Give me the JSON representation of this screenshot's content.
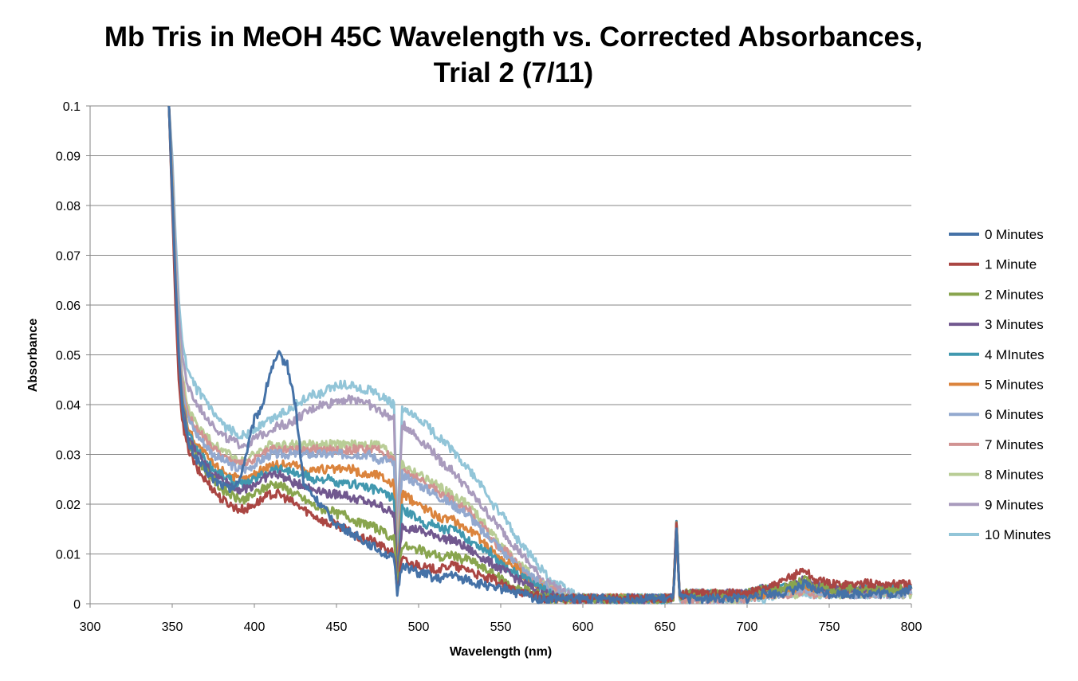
{
  "chart_data": {
    "type": "line",
    "title": [
      "Mb Tris in MeOH 45C Wavelength vs. Corrected Absorbances,",
      "Trial 2 (7/11)"
    ],
    "xlabel": "Wavelength (nm)",
    "ylabel": "Absorbance",
    "xlim": [
      300,
      800
    ],
    "ylim": [
      0,
      0.1
    ],
    "x_ticks": [
      "300",
      "350",
      "400",
      "450",
      "500",
      "550",
      "600",
      "650",
      "700",
      "750",
      "800"
    ],
    "y_ticks": [
      "0",
      "0.01",
      "0.02",
      "0.03",
      "0.04",
      "0.05",
      "0.06",
      "0.07",
      "0.08",
      "0.09",
      "0.1"
    ],
    "grid": "horizontal",
    "legend_position": "right",
    "colors": [
      "#4572A7",
      "#AA4643",
      "#89A54E",
      "#71588F",
      "#4198AF",
      "#DB843D",
      "#93A9CF",
      "#D19392",
      "#B9CD96",
      "#A99BBD",
      "#92C5D8"
    ],
    "x": [
      348,
      350,
      352,
      354,
      356,
      358,
      360,
      365,
      370,
      375,
      380,
      385,
      390,
      395,
      400,
      405,
      410,
      415,
      420,
      425,
      430,
      435,
      440,
      445,
      450,
      455,
      460,
      465,
      470,
      475,
      480,
      485,
      487,
      490,
      495,
      500,
      505,
      510,
      515,
      520,
      525,
      530,
      535,
      540,
      545,
      550,
      555,
      560,
      565,
      570,
      575,
      580,
      585,
      590,
      595,
      600,
      610,
      620,
      630,
      640,
      650,
      655,
      657,
      659,
      661,
      665,
      670,
      680,
      690,
      700,
      710,
      720,
      730,
      735,
      740,
      750,
      760,
      770,
      780,
      790,
      800
    ],
    "series": [
      {
        "name": "0 Minutes",
        "values": [
          0.1,
          0.082,
          0.065,
          0.05,
          0.04,
          0.035,
          0.032,
          0.029,
          0.027,
          0.025,
          0.024,
          0.023,
          0.024,
          0.03,
          0.037,
          0.04,
          0.047,
          0.05,
          0.048,
          0.04,
          0.024,
          0.022,
          0.02,
          0.018,
          0.016,
          0.015,
          0.014,
          0.013,
          0.012,
          0.011,
          0.01,
          0.009,
          0.002,
          0.008,
          0.007,
          0.006,
          0.006,
          0.005,
          0.005,
          0.006,
          0.005,
          0.005,
          0.004,
          0.004,
          0.003,
          0.003,
          0.003,
          0.002,
          0.002,
          0.001,
          0.001,
          0.001,
          0.001,
          0.001,
          0.001,
          0.001,
          0.001,
          0.001,
          0.001,
          0.001,
          0.001,
          0.001,
          0.015,
          0.001,
          0.001,
          0.001,
          0.001,
          0.001,
          0.001,
          0.001,
          0.002,
          0.002,
          0.003,
          0.004,
          0.003,
          0.002,
          0.002,
          0.002,
          0.002,
          0.002,
          0.003
        ]
      },
      {
        "name": "1 Minute",
        "values": [
          0.1,
          0.08,
          0.06,
          0.045,
          0.037,
          0.033,
          0.031,
          0.027,
          0.025,
          0.023,
          0.021,
          0.02,
          0.019,
          0.019,
          0.02,
          0.021,
          0.022,
          0.022,
          0.021,
          0.02,
          0.019,
          0.018,
          0.017,
          0.016,
          0.016,
          0.015,
          0.014,
          0.013,
          0.013,
          0.012,
          0.011,
          0.01,
          0.003,
          0.009,
          0.008,
          0.008,
          0.007,
          0.007,
          0.007,
          0.008,
          0.007,
          0.007,
          0.006,
          0.005,
          0.005,
          0.004,
          0.003,
          0.003,
          0.002,
          0.002,
          0.001,
          0.001,
          0.001,
          0.001,
          0.001,
          0.001,
          0.001,
          0.001,
          0.001,
          0.001,
          0.001,
          0.001,
          0.016,
          0.001,
          0.002,
          0.002,
          0.002,
          0.002,
          0.002,
          0.002,
          0.003,
          0.004,
          0.006,
          0.007,
          0.005,
          0.004,
          0.004,
          0.004,
          0.004,
          0.004,
          0.004
        ]
      },
      {
        "name": "2 Minutes",
        "values": [
          0.1,
          0.081,
          0.062,
          0.047,
          0.039,
          0.035,
          0.032,
          0.029,
          0.027,
          0.025,
          0.023,
          0.022,
          0.021,
          0.021,
          0.022,
          0.023,
          0.024,
          0.024,
          0.023,
          0.022,
          0.021,
          0.02,
          0.019,
          0.019,
          0.018,
          0.018,
          0.017,
          0.016,
          0.016,
          0.015,
          0.014,
          0.013,
          0.004,
          0.012,
          0.011,
          0.011,
          0.01,
          0.01,
          0.009,
          0.01,
          0.009,
          0.009,
          0.008,
          0.007,
          0.006,
          0.005,
          0.004,
          0.003,
          0.003,
          0.002,
          0.002,
          0.001,
          0.001,
          0.001,
          0.001,
          0.001,
          0.001,
          0.001,
          0.001,
          0.001,
          0.001,
          0.001,
          0.016,
          0.001,
          0.002,
          0.002,
          0.002,
          0.002,
          0.002,
          0.002,
          0.003,
          0.003,
          0.004,
          0.005,
          0.004,
          0.003,
          0.003,
          0.003,
          0.003,
          0.003,
          0.003
        ]
      },
      {
        "name": "3 Minutes",
        "values": [
          0.1,
          0.082,
          0.063,
          0.048,
          0.04,
          0.036,
          0.033,
          0.03,
          0.028,
          0.026,
          0.025,
          0.024,
          0.023,
          0.023,
          0.024,
          0.025,
          0.026,
          0.026,
          0.025,
          0.024,
          0.024,
          0.023,
          0.023,
          0.022,
          0.022,
          0.022,
          0.021,
          0.021,
          0.02,
          0.02,
          0.019,
          0.018,
          0.005,
          0.016,
          0.015,
          0.015,
          0.014,
          0.014,
          0.013,
          0.013,
          0.012,
          0.011,
          0.01,
          0.009,
          0.008,
          0.007,
          0.006,
          0.005,
          0.004,
          0.003,
          0.002,
          0.002,
          0.001,
          0.001,
          0.001,
          0.001,
          0.001,
          0.001,
          0.001,
          0.001,
          0.001,
          0.001,
          0.016,
          0.001,
          0.002,
          0.002,
          0.002,
          0.002,
          0.002,
          0.002,
          0.003,
          0.003,
          0.004,
          0.005,
          0.004,
          0.003,
          0.003,
          0.003,
          0.003,
          0.003,
          0.003
        ]
      },
      {
        "name": "4 MInutes",
        "values": [
          0.1,
          0.083,
          0.064,
          0.049,
          0.041,
          0.037,
          0.034,
          0.031,
          0.029,
          0.027,
          0.026,
          0.025,
          0.024,
          0.024,
          0.025,
          0.026,
          0.027,
          0.027,
          0.027,
          0.026,
          0.026,
          0.025,
          0.025,
          0.025,
          0.024,
          0.024,
          0.024,
          0.024,
          0.023,
          0.023,
          0.022,
          0.021,
          0.006,
          0.019,
          0.018,
          0.017,
          0.016,
          0.016,
          0.015,
          0.015,
          0.014,
          0.013,
          0.012,
          0.011,
          0.01,
          0.008,
          0.007,
          0.006,
          0.005,
          0.004,
          0.003,
          0.002,
          0.001,
          0.001,
          0.001,
          0.001,
          0.001,
          0.001,
          0.001,
          0.001,
          0.001,
          0.001,
          0.016,
          0.001,
          0.002,
          0.002,
          0.002,
          0.002,
          0.002,
          0.002,
          0.003,
          0.003,
          0.004,
          0.004,
          0.004,
          0.003,
          0.003,
          0.003,
          0.003,
          0.003,
          0.003
        ]
      },
      {
        "name": "5 Minutes",
        "values": [
          0.1,
          0.084,
          0.065,
          0.05,
          0.042,
          0.038,
          0.035,
          0.032,
          0.03,
          0.028,
          0.027,
          0.026,
          0.025,
          0.025,
          0.026,
          0.027,
          0.028,
          0.028,
          0.028,
          0.028,
          0.027,
          0.027,
          0.027,
          0.027,
          0.027,
          0.027,
          0.027,
          0.026,
          0.026,
          0.026,
          0.025,
          0.024,
          0.007,
          0.022,
          0.021,
          0.02,
          0.019,
          0.018,
          0.017,
          0.017,
          0.016,
          0.015,
          0.014,
          0.012,
          0.011,
          0.009,
          0.008,
          0.007,
          0.005,
          0.004,
          0.003,
          0.002,
          0.001,
          0.001,
          0.001,
          0.001,
          0.001,
          0.001,
          0.001,
          0.001,
          0.001,
          0.001,
          0.015,
          0.001,
          0.002,
          0.002,
          0.002,
          0.002,
          0.002,
          0.002,
          0.002,
          0.003,
          0.003,
          0.004,
          0.003,
          0.003,
          0.003,
          0.003,
          0.003,
          0.003,
          0.003
        ]
      },
      {
        "name": "6 Minutes",
        "values": [
          0.1,
          0.085,
          0.066,
          0.052,
          0.044,
          0.04,
          0.037,
          0.034,
          0.032,
          0.03,
          0.029,
          0.028,
          0.027,
          0.027,
          0.028,
          0.029,
          0.03,
          0.03,
          0.03,
          0.03,
          0.03,
          0.03,
          0.03,
          0.03,
          0.03,
          0.03,
          0.03,
          0.03,
          0.03,
          0.029,
          0.029,
          0.028,
          0.008,
          0.026,
          0.025,
          0.024,
          0.023,
          0.022,
          0.021,
          0.02,
          0.019,
          0.018,
          0.016,
          0.014,
          0.013,
          0.011,
          0.009,
          0.008,
          0.006,
          0.005,
          0.004,
          0.003,
          0.002,
          0.001,
          0.001,
          0.001,
          0.001,
          0.001,
          0.001,
          0.001,
          0.001,
          0.001,
          0.014,
          0.001,
          0.002,
          0.002,
          0.002,
          0.002,
          0.002,
          0.002,
          0.002,
          0.002,
          0.003,
          0.003,
          0.003,
          0.002,
          0.002,
          0.002,
          0.002,
          0.002,
          0.002
        ]
      },
      {
        "name": "7 Minutes",
        "values": [
          0.1,
          0.085,
          0.067,
          0.053,
          0.045,
          0.041,
          0.038,
          0.035,
          0.033,
          0.031,
          0.03,
          0.029,
          0.028,
          0.028,
          0.029,
          0.03,
          0.031,
          0.031,
          0.031,
          0.031,
          0.031,
          0.031,
          0.031,
          0.031,
          0.031,
          0.031,
          0.031,
          0.031,
          0.031,
          0.031,
          0.03,
          0.029,
          0.009,
          0.027,
          0.026,
          0.025,
          0.024,
          0.023,
          0.022,
          0.021,
          0.02,
          0.019,
          0.017,
          0.015,
          0.013,
          0.011,
          0.01,
          0.008,
          0.006,
          0.005,
          0.004,
          0.003,
          0.002,
          0.001,
          0.001,
          0.001,
          0.001,
          0.001,
          0.001,
          0.001,
          0.001,
          0.001,
          0.014,
          0.001,
          0.001,
          0.001,
          0.001,
          0.001,
          0.001,
          0.001,
          0.002,
          0.002,
          0.002,
          0.003,
          0.002,
          0.002,
          0.002,
          0.002,
          0.002,
          0.002,
          0.002
        ]
      },
      {
        "name": "8 Minutes",
        "values": [
          0.1,
          0.086,
          0.068,
          0.054,
          0.046,
          0.042,
          0.039,
          0.036,
          0.034,
          0.032,
          0.031,
          0.03,
          0.029,
          0.029,
          0.03,
          0.031,
          0.032,
          0.032,
          0.032,
          0.032,
          0.032,
          0.032,
          0.032,
          0.032,
          0.032,
          0.032,
          0.032,
          0.032,
          0.032,
          0.032,
          0.031,
          0.03,
          0.01,
          0.028,
          0.027,
          0.026,
          0.025,
          0.024,
          0.023,
          0.022,
          0.021,
          0.02,
          0.018,
          0.016,
          0.014,
          0.012,
          0.01,
          0.008,
          0.007,
          0.005,
          0.004,
          0.003,
          0.002,
          0.001,
          0.001,
          0.001,
          0.001,
          0.001,
          0.001,
          0.001,
          0.001,
          0.001,
          0.014,
          0.001,
          0.001,
          0.001,
          0.001,
          0.001,
          0.001,
          0.001,
          0.002,
          0.002,
          0.002,
          0.003,
          0.002,
          0.002,
          0.002,
          0.002,
          0.002,
          0.002,
          0.002
        ]
      },
      {
        "name": "9 Minutes",
        "values": [
          0.1,
          0.088,
          0.071,
          0.058,
          0.05,
          0.046,
          0.043,
          0.04,
          0.038,
          0.036,
          0.034,
          0.033,
          0.032,
          0.032,
          0.033,
          0.034,
          0.035,
          0.036,
          0.036,
          0.037,
          0.038,
          0.039,
          0.04,
          0.04,
          0.041,
          0.041,
          0.041,
          0.041,
          0.04,
          0.039,
          0.038,
          0.037,
          0.012,
          0.036,
          0.035,
          0.033,
          0.032,
          0.03,
          0.028,
          0.027,
          0.025,
          0.023,
          0.021,
          0.019,
          0.017,
          0.015,
          0.013,
          0.011,
          0.009,
          0.007,
          0.005,
          0.004,
          0.003,
          0.002,
          0.001,
          0.001,
          0.001,
          0.001,
          0.001,
          0.001,
          0.001,
          0.001,
          0.014,
          0.001,
          0.001,
          0.001,
          0.001,
          0.001,
          0.001,
          0.001,
          0.002,
          0.002,
          0.002,
          0.003,
          0.002,
          0.002,
          0.002,
          0.002,
          0.002,
          0.002,
          0.002
        ]
      },
      {
        "name": "10 Minutes",
        "values": [
          0.1,
          0.09,
          0.074,
          0.061,
          0.053,
          0.049,
          0.046,
          0.043,
          0.041,
          0.038,
          0.036,
          0.035,
          0.034,
          0.034,
          0.035,
          0.036,
          0.037,
          0.038,
          0.039,
          0.04,
          0.041,
          0.042,
          0.042,
          0.043,
          0.044,
          0.044,
          0.044,
          0.043,
          0.043,
          0.042,
          0.041,
          0.04,
          0.014,
          0.039,
          0.038,
          0.037,
          0.036,
          0.034,
          0.033,
          0.031,
          0.029,
          0.027,
          0.025,
          0.023,
          0.02,
          0.018,
          0.016,
          0.013,
          0.011,
          0.009,
          0.007,
          0.005,
          0.004,
          0.003,
          0.002,
          0.001,
          0.001,
          0.001,
          0.001,
          0.001,
          0.001,
          0.001,
          0.014,
          0.001,
          0.001,
          0.001,
          0.001,
          0.001,
          0.001,
          0.001,
          0.001,
          0.002,
          0.002,
          0.002,
          0.002,
          0.002,
          0.002,
          0.002,
          0.002,
          0.002,
          0.002
        ]
      }
    ]
  }
}
